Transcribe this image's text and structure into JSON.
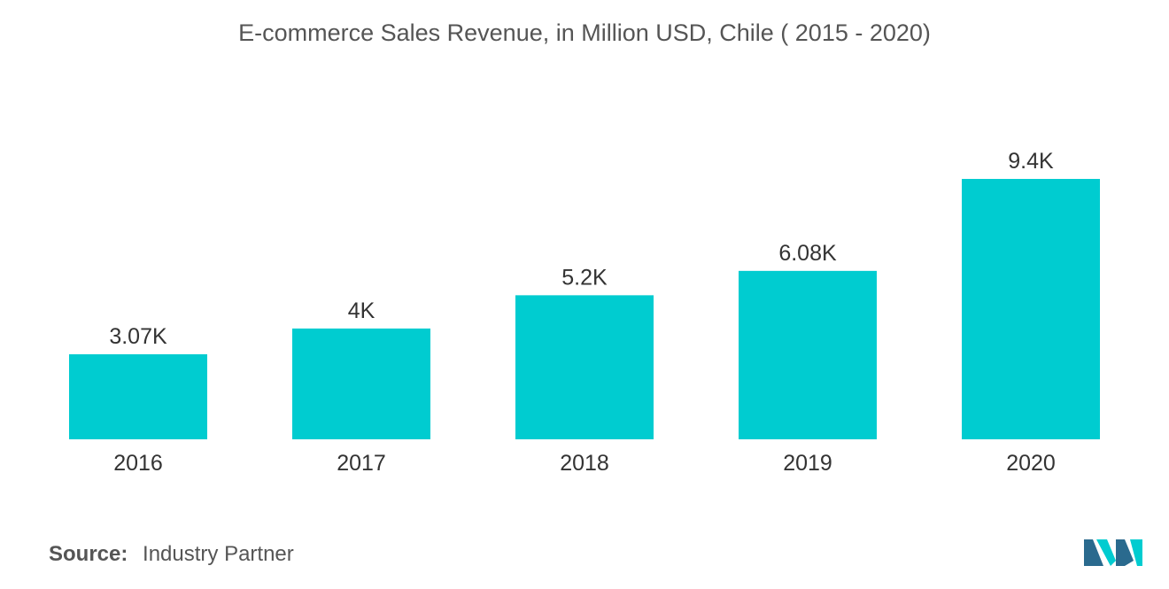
{
  "chart_data": {
    "type": "bar",
    "title": "E-commerce Sales Revenue, in Million USD, Chile ( 2015 - 2020)",
    "categories": [
      "2016",
      "2017",
      "2018",
      "2019",
      "2020"
    ],
    "values": [
      3070,
      4000,
      5200,
      6080,
      9400
    ],
    "data_labels": [
      "3.07K",
      "4K",
      "5.2K",
      "6.08K",
      "9.4K"
    ],
    "xlabel": "",
    "ylabel": "",
    "ylim": [
      0,
      9400
    ],
    "grid": false,
    "legend": "none",
    "bar_color": "#00CCD0"
  },
  "source": {
    "label": "Source:",
    "value": "Industry Partner"
  },
  "logo": {
    "icon": "mordor-intelligence-logo-icon",
    "colors": [
      "#2A6A8E",
      "#00CCD0"
    ]
  }
}
